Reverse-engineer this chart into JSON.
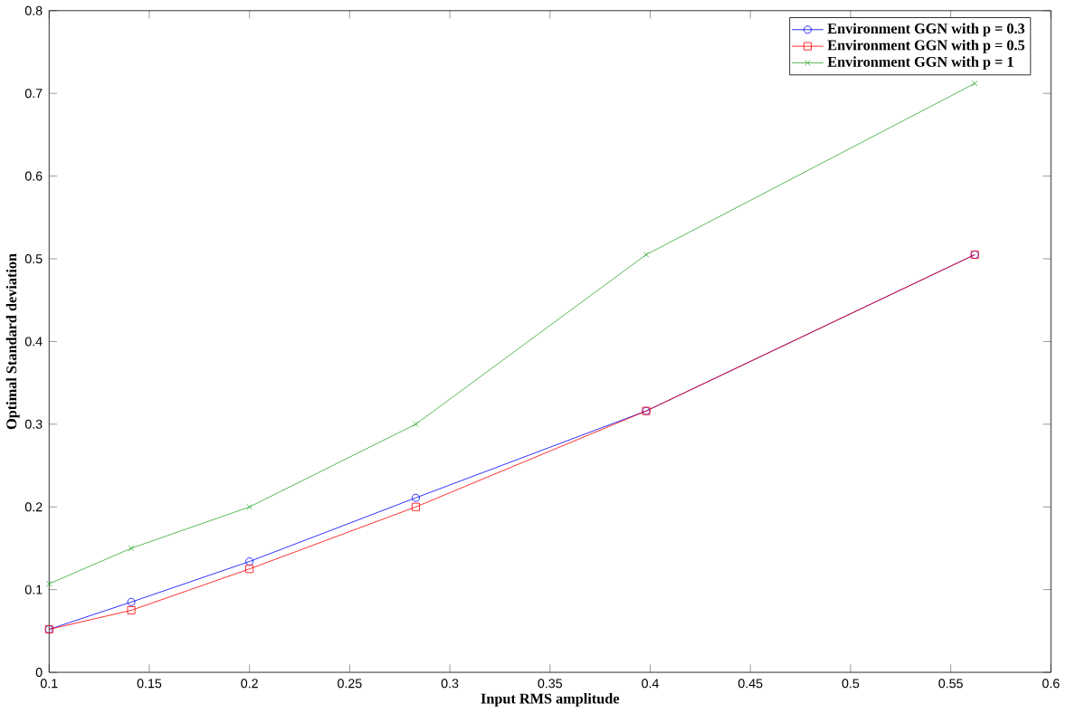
{
  "chart_data": {
    "type": "line",
    "xlabel": "Input RMS amplitude",
    "ylabel": "Optimal Standard deviation",
    "x": [
      0.1,
      0.141,
      0.2,
      0.283,
      0.398,
      0.562
    ],
    "series": [
      {
        "name": "Environment GGN with p = 0.3",
        "color": "#0000ff",
        "marker": "circle",
        "values": [
          0.052,
          0.085,
          0.134,
          0.211,
          0.316,
          0.505
        ]
      },
      {
        "name": "Environment GGN with p = 0.5",
        "color": "#ff0000",
        "marker": "square",
        "values": [
          0.052,
          0.075,
          0.125,
          0.2,
          0.316,
          0.505
        ]
      },
      {
        "name": "Environment GGN with p = 1",
        "color": "#33aa33",
        "marker": "cross",
        "values": [
          0.107,
          0.15,
          0.2,
          0.3,
          0.505,
          0.712
        ]
      }
    ],
    "xlim": [
      0.1,
      0.6
    ],
    "ylim": [
      0,
      0.8
    ],
    "xticks": [
      0.1,
      0.15,
      0.2,
      0.25,
      0.3,
      0.35,
      0.4,
      0.45,
      0.5,
      0.55,
      0.6
    ],
    "yticks": [
      0,
      0.1,
      0.2,
      0.3,
      0.4,
      0.5,
      0.6,
      0.7,
      0.8
    ],
    "legend": "top right",
    "grid": false,
    "line_style": "solid"
  }
}
